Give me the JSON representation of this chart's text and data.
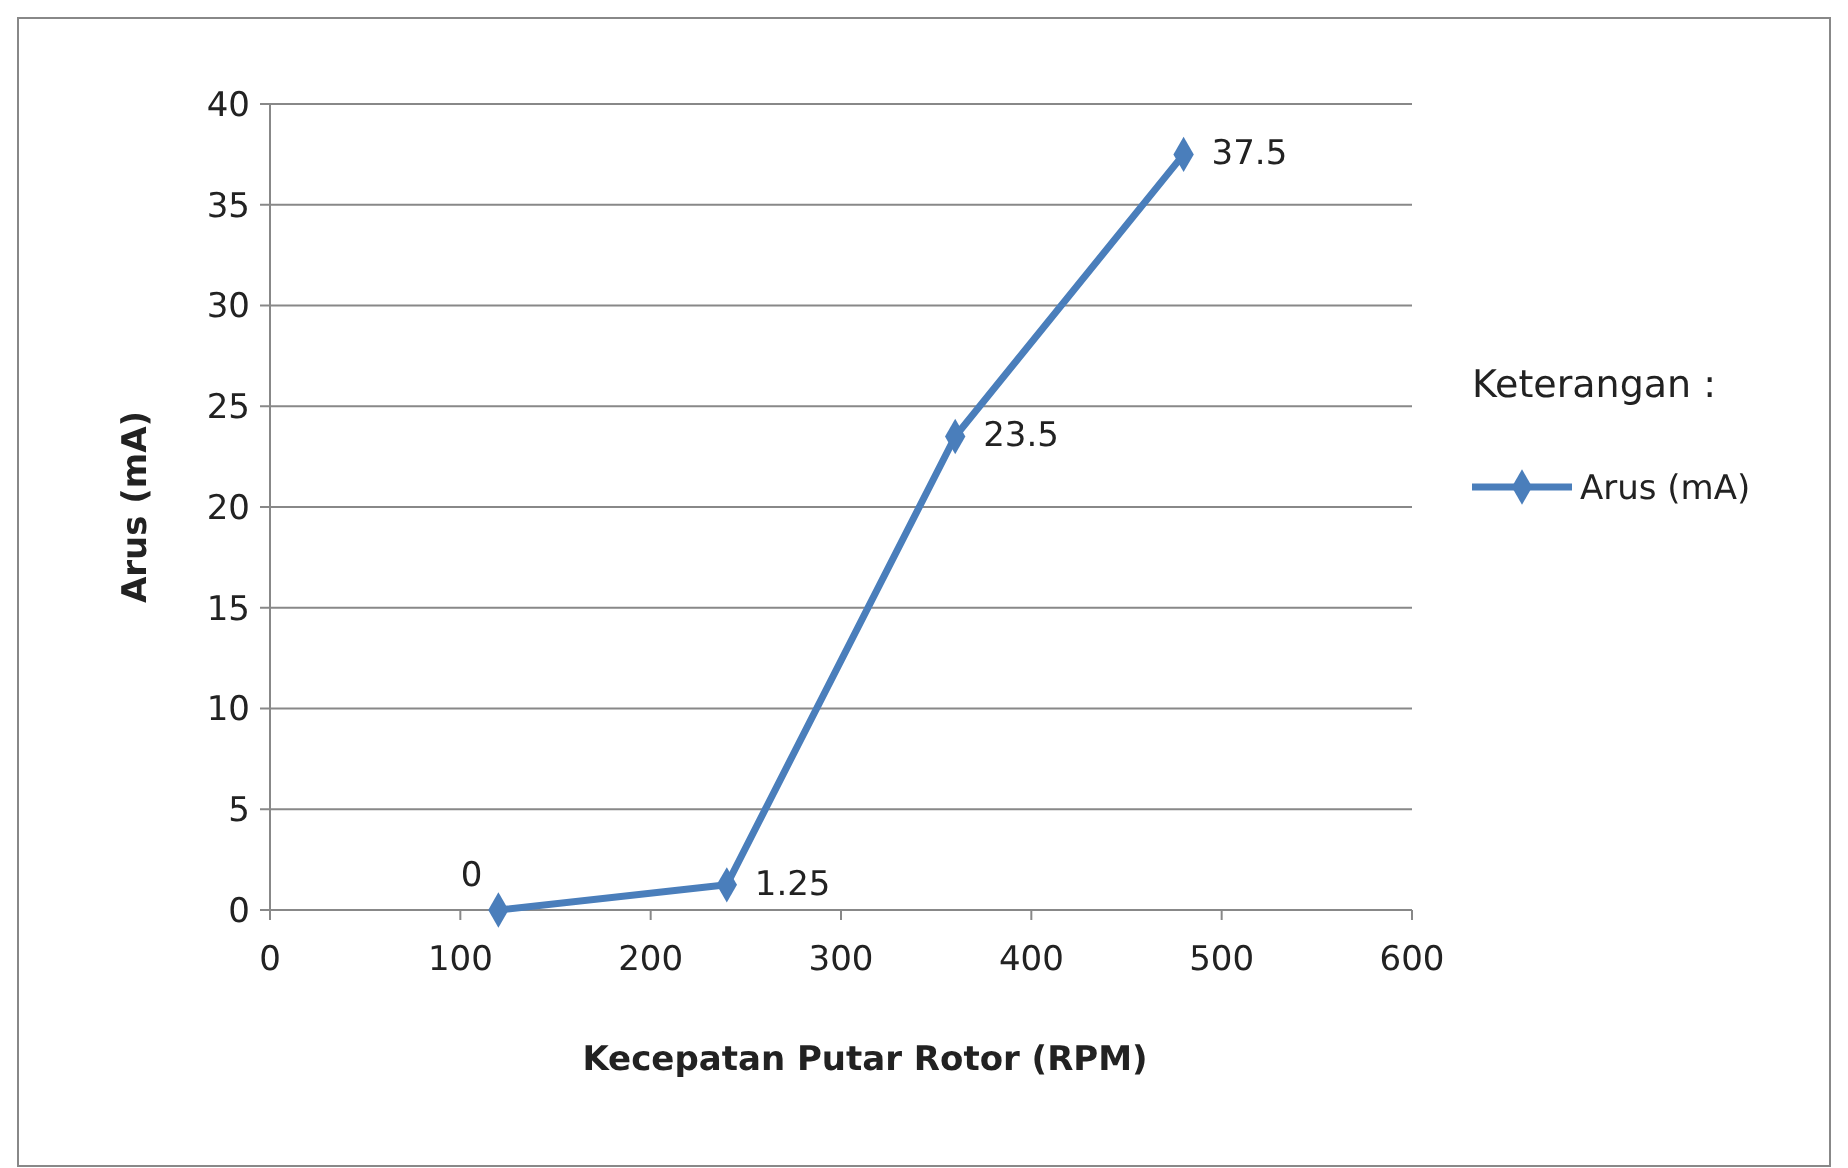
{
  "chart_data": {
    "type": "line",
    "xlabel": "Kecepatan Putar Rotor (RPM)",
    "ylabel": "Arus (mA)",
    "legend_title": "Keterangan :",
    "x": [
      120,
      240,
      360,
      480
    ],
    "series": [
      {
        "name": "Arus (mA)",
        "color": "#4a7ebb",
        "values": [
          0,
          1.25,
          23.5,
          37.5
        ]
      }
    ],
    "xlim": [
      0,
      600
    ],
    "xticks": [
      0,
      100,
      200,
      300,
      400,
      500,
      600
    ],
    "ylim": [
      0,
      40
    ],
    "yticks": [
      0,
      5,
      10,
      15,
      20,
      25,
      30,
      35,
      40
    ],
    "grid": "y",
    "legend": "right",
    "marker": "diamond",
    "line_style": "solid",
    "data_labels": true
  }
}
